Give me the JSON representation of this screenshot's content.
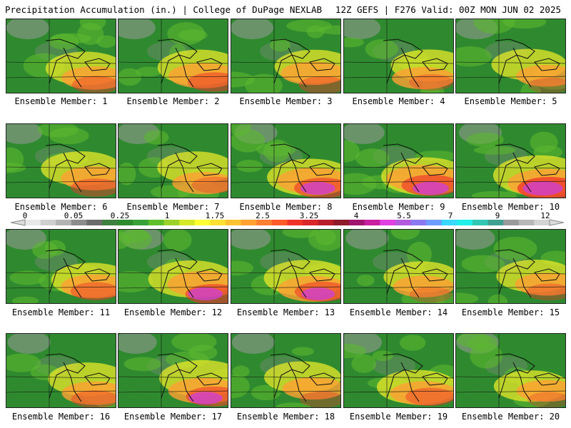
{
  "header": {
    "title_left": "Precipitation Accumulation (in.) | College of DuPage NEXLAB",
    "title_right": "12Z GEFS | F276 Valid: 00Z MON JUN 02 2025"
  },
  "members": [
    {
      "label": "Ensemble Member: 1",
      "intensity": 0.55
    },
    {
      "label": "Ensemble Member: 2",
      "intensity": 0.7
    },
    {
      "label": "Ensemble Member: 3",
      "intensity": 0.55
    },
    {
      "label": "Ensemble Member: 4",
      "intensity": 0.45
    },
    {
      "label": "Ensemble Member: 5",
      "intensity": 0.4
    },
    {
      "label": "Ensemble Member: 6",
      "intensity": 0.6
    },
    {
      "label": "Ensemble Member: 7",
      "intensity": 0.45
    },
    {
      "label": "Ensemble Member: 8",
      "intensity": 0.8
    },
    {
      "label": "Ensemble Member: 9",
      "intensity": 0.85
    },
    {
      "label": "Ensemble Member: 10",
      "intensity": 1.0
    },
    {
      "label": "Ensemble Member: 11",
      "intensity": 0.6
    },
    {
      "label": "Ensemble Member: 12",
      "intensity": 0.8
    },
    {
      "label": "Ensemble Member: 13",
      "intensity": 0.75
    },
    {
      "label": "Ensemble Member: 14",
      "intensity": 0.4
    },
    {
      "label": "Ensemble Member: 15",
      "intensity": 0.5
    },
    {
      "label": "Ensemble Member: 16",
      "intensity": 0.55
    },
    {
      "label": "Ensemble Member: 17",
      "intensity": 0.75
    },
    {
      "label": "Ensemble Member: 18",
      "intensity": 0.45
    },
    {
      "label": "Ensemble Member: 19",
      "intensity": 0.6
    },
    {
      "label": "Ensemble Member: 20",
      "intensity": 0.4
    }
  ],
  "colorbar": {
    "labels": [
      "0",
      "0.05",
      "0.25",
      "1",
      "1.75",
      "2.5",
      "3.25",
      "4",
      "5.5",
      "7",
      "9",
      "12"
    ],
    "colors": [
      "#e8e8e8",
      "#cfcfcf",
      "#b3b3b3",
      "#8c8c8c",
      "#6b6b6b",
      "#3f7f3f",
      "#2e8b2e",
      "#3aa23a",
      "#5fbf2a",
      "#9bd12a",
      "#d6e82a",
      "#ffff33",
      "#ffe033",
      "#ffc233",
      "#ffa033",
      "#ff7f33",
      "#ff5a2a",
      "#f0332a",
      "#d9262a",
      "#b81e2a",
      "#8f1a2a",
      "#a0166e",
      "#c81ea0",
      "#e040e0",
      "#b45adc",
      "#8c78f0",
      "#6e9cff",
      "#38d8ff",
      "#20f0e8",
      "#30c8b4",
      "#40a090",
      "#9a9a9a",
      "#b8b8b8",
      "#d4d4d4"
    ]
  }
}
